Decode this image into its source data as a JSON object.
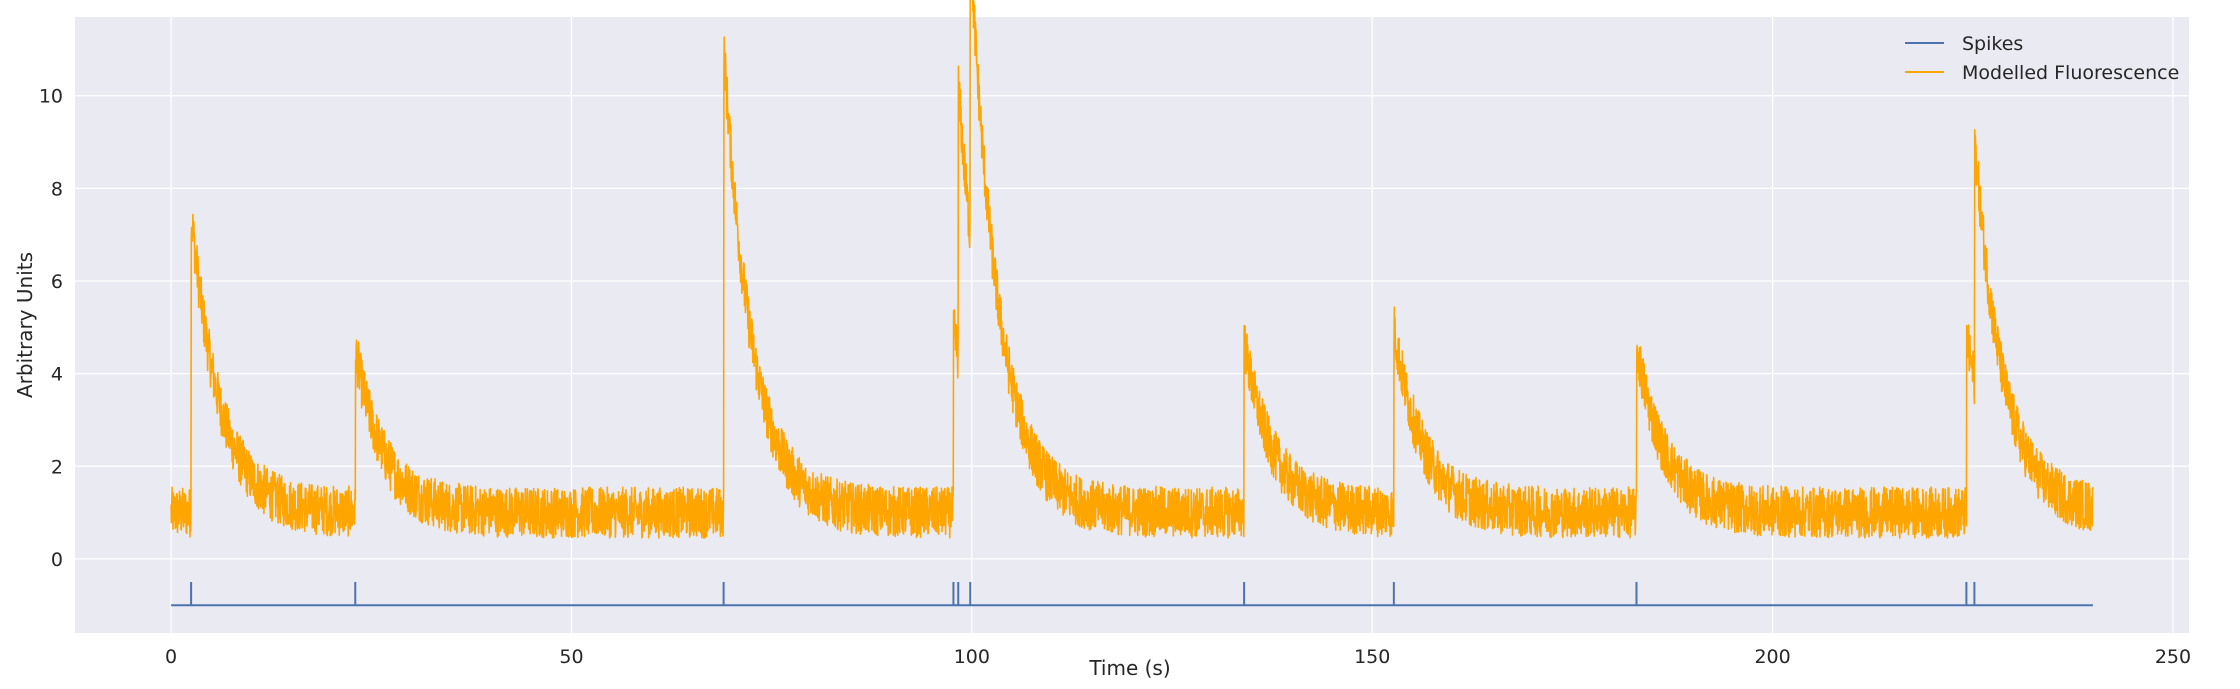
{
  "chart_data": {
    "type": "line",
    "title": "",
    "xlabel": "Time (s)",
    "ylabel": "Arbitrary Units",
    "xlim": [
      -12,
      252
    ],
    "ylim": [
      -1.6,
      11.7
    ],
    "xticks": [
      0,
      50,
      100,
      150,
      200,
      250
    ],
    "yticks": [
      0,
      2,
      4,
      6,
      8,
      10
    ],
    "grid": true,
    "legend": "top-right",
    "background": "#EAEAF2",
    "series": [
      {
        "name": "Spikes",
        "color": "#4C72B0",
        "baseline": -1.0,
        "x": [
          0,
          240
        ],
        "spike_times": [
          2.5,
          23.0,
          69.0,
          97.7,
          98.3,
          99.8,
          134.0,
          152.7,
          183.0,
          224.2,
          225.2
        ],
        "spike_height": -0.5
      },
      {
        "name": "Modelled Fluorescence",
        "color": "#FFA500",
        "x_range": [
          0,
          240
        ],
        "baseline": 1.0,
        "noise_amplitude": 0.55,
        "transients": [
          {
            "t": 2.5,
            "peak": 7.5
          },
          {
            "t": 23.0,
            "peak": 4.5
          },
          {
            "t": 69.0,
            "peak": 11.1
          },
          {
            "t": 97.7,
            "peak": 5.0
          },
          {
            "t": 98.3,
            "peak": 6.9
          },
          {
            "t": 99.8,
            "peak": 7.2
          },
          {
            "t": 134.0,
            "peak": 4.7
          },
          {
            "t": 152.7,
            "peak": 5.0
          },
          {
            "t": 183.0,
            "peak": 4.6
          },
          {
            "t": 224.2,
            "peak": 4.8
          },
          {
            "t": 225.2,
            "peak": 6.3
          }
        ],
        "decay_time_s": 3.5
      }
    ]
  }
}
